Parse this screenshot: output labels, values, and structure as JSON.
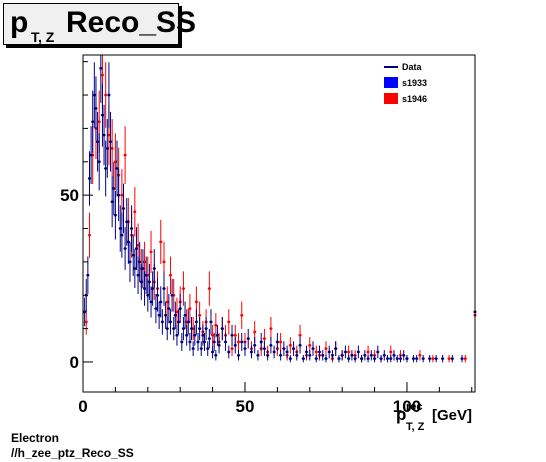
{
  "title": {
    "main": "p",
    "sub": "T, Z",
    "rest": "Reco_SS"
  },
  "footer": {
    "line1": "Electron",
    "line2": "//h_zee_ptz_Reco_SS"
  },
  "colors": {
    "data": "#000080",
    "s1933": "#0000ff",
    "s1946": "#ff0000",
    "frame": "#000000"
  },
  "chart_data": {
    "type": "scatter",
    "x_axis": {
      "label_main": "p",
      "label_sup": "rec",
      "label_sub": "T, Z",
      "label_unit": "[GeV]",
      "range": [
        0,
        121
      ],
      "ticks": [
        0,
        50,
        100
      ]
    },
    "y_axis": {
      "range": [
        -9,
        92
      ],
      "ticks": [
        0,
        50
      ]
    },
    "legend": {
      "placement": "top-right",
      "entries": [
        {
          "name": "Data",
          "style": "line",
          "color": "#000080"
        },
        {
          "name": "s1933",
          "style": "fill",
          "color": "#0000ff"
        },
        {
          "name": "s1946",
          "style": "fill",
          "color": "#ff0000"
        }
      ]
    },
    "series": [
      {
        "name": "s1946",
        "color": "#ff0000",
        "points": [
          [
            1,
            12
          ],
          [
            2,
            38
          ],
          [
            3,
            62
          ],
          [
            4,
            70
          ],
          [
            5,
            72
          ],
          [
            6,
            86
          ],
          [
            7,
            80
          ],
          [
            8,
            68
          ],
          [
            9,
            64
          ],
          [
            10,
            60
          ],
          [
            11,
            56
          ],
          [
            12,
            50
          ],
          [
            13,
            62
          ],
          [
            14,
            42
          ],
          [
            15,
            38
          ],
          [
            16,
            45
          ],
          [
            17,
            35
          ],
          [
            18,
            28
          ],
          [
            19,
            30
          ],
          [
            20,
            26
          ],
          [
            21,
            33
          ],
          [
            22,
            24
          ],
          [
            23,
            22
          ],
          [
            24,
            36
          ],
          [
            25,
            30
          ],
          [
            26,
            18
          ],
          [
            27,
            26
          ],
          [
            28,
            20
          ],
          [
            29,
            15
          ],
          [
            30,
            18
          ],
          [
            31,
            22
          ],
          [
            32,
            12
          ],
          [
            33,
            16
          ],
          [
            34,
            10
          ],
          [
            35,
            18
          ],
          [
            36,
            14
          ],
          [
            37,
            9
          ],
          [
            38,
            12
          ],
          [
            39,
            22
          ],
          [
            40,
            8
          ],
          [
            41,
            11
          ],
          [
            42,
            6
          ],
          [
            43,
            10
          ],
          [
            44,
            8
          ],
          [
            45,
            12
          ],
          [
            46,
            4
          ],
          [
            47,
            8
          ],
          [
            48,
            6
          ],
          [
            49,
            14
          ],
          [
            50,
            6
          ],
          [
            52,
            4
          ],
          [
            53,
            9
          ],
          [
            55,
            4
          ],
          [
            56,
            7
          ],
          [
            57,
            3
          ],
          [
            58,
            10
          ],
          [
            60,
            4
          ],
          [
            61,
            6
          ],
          [
            63,
            2
          ],
          [
            64,
            5
          ],
          [
            66,
            3
          ],
          [
            67,
            8
          ],
          [
            69,
            2
          ],
          [
            70,
            5
          ],
          [
            72,
            3
          ],
          [
            73,
            2
          ],
          [
            75,
            4
          ],
          [
            77,
            1
          ],
          [
            78,
            4
          ],
          [
            80,
            2
          ],
          [
            82,
            3
          ],
          [
            84,
            2
          ],
          [
            86,
            1
          ],
          [
            88,
            3
          ],
          [
            90,
            2
          ],
          [
            92,
            1
          ],
          [
            95,
            3
          ],
          [
            98,
            2
          ],
          [
            100,
            1
          ],
          [
            104,
            2
          ],
          [
            108,
            1
          ],
          [
            113,
            1
          ],
          [
            118,
            1
          ],
          [
            121,
            14
          ]
        ]
      },
      {
        "name": "Data",
        "color": "#000080",
        "points": [
          [
            0.5,
            15
          ],
          [
            1,
            20
          ],
          [
            1.5,
            26
          ],
          [
            2,
            55
          ],
          [
            2.5,
            62
          ],
          [
            3,
            72
          ],
          [
            3.5,
            80
          ],
          [
            4,
            76
          ],
          [
            4.5,
            66
          ],
          [
            5,
            60
          ],
          [
            5.5,
            88
          ],
          [
            6,
            74
          ],
          [
            6.5,
            68
          ],
          [
            7,
            58
          ],
          [
            7.5,
            64
          ],
          [
            8,
            80
          ],
          [
            8.5,
            66
          ],
          [
            9,
            48
          ],
          [
            9.5,
            52
          ],
          [
            10,
            44
          ],
          [
            10.5,
            58
          ],
          [
            11,
            50
          ],
          [
            11.5,
            40
          ],
          [
            12,
            38
          ],
          [
            12.5,
            46
          ],
          [
            13,
            34
          ],
          [
            13.5,
            42
          ],
          [
            14,
            36
          ],
          [
            14.5,
            30
          ],
          [
            15,
            40
          ],
          [
            15.5,
            32
          ],
          [
            16,
            28
          ],
          [
            16.5,
            34
          ],
          [
            17,
            26
          ],
          [
            17.5,
            30
          ],
          [
            18,
            24
          ],
          [
            18.5,
            28
          ],
          [
            19,
            22
          ],
          [
            19.5,
            26
          ],
          [
            20,
            20
          ],
          [
            20.5,
            24
          ],
          [
            21,
            18
          ],
          [
            21.5,
            22
          ],
          [
            22,
            28
          ],
          [
            22.5,
            16
          ],
          [
            23,
            20
          ],
          [
            23.5,
            14
          ],
          [
            24,
            18
          ],
          [
            24.5,
            12
          ],
          [
            25,
            22
          ],
          [
            25.5,
            14
          ],
          [
            26,
            10
          ],
          [
            26.5,
            16
          ],
          [
            27,
            12
          ],
          [
            27.5,
            20
          ],
          [
            28,
            10
          ],
          [
            28.5,
            14
          ],
          [
            29,
            8
          ],
          [
            29.5,
            12
          ],
          [
            30,
            16
          ],
          [
            30.5,
            6
          ],
          [
            31,
            10
          ],
          [
            31.5,
            14
          ],
          [
            32,
            8
          ],
          [
            32.5,
            12
          ],
          [
            33,
            6
          ],
          [
            33.5,
            10
          ],
          [
            34,
            4
          ],
          [
            34.5,
            8
          ],
          [
            35,
            12
          ],
          [
            35.5,
            6
          ],
          [
            36,
            10
          ],
          [
            36.5,
            4
          ],
          [
            37,
            8
          ],
          [
            37.5,
            6
          ],
          [
            38,
            10
          ],
          [
            38.5,
            4
          ],
          [
            39,
            7
          ],
          [
            39.5,
            12
          ],
          [
            40,
            3
          ],
          [
            40.5,
            6
          ],
          [
            41,
            2
          ],
          [
            41.5,
            8
          ],
          [
            42,
            5
          ],
          [
            43,
            10
          ],
          [
            44,
            6
          ],
          [
            45,
            3
          ],
          [
            46,
            8
          ],
          [
            47,
            5
          ],
          [
            48,
            2
          ],
          [
            49,
            6
          ],
          [
            50,
            4
          ],
          [
            51,
            7
          ],
          [
            52,
            3
          ],
          [
            53,
            5
          ],
          [
            54,
            2
          ],
          [
            55,
            6
          ],
          [
            56,
            4
          ],
          [
            57,
            2
          ],
          [
            58,
            5
          ],
          [
            59,
            3
          ],
          [
            60,
            6
          ],
          [
            61,
            2
          ],
          [
            62,
            4
          ],
          [
            63,
            3
          ],
          [
            64,
            1
          ],
          [
            65,
            4
          ],
          [
            66,
            2
          ],
          [
            67,
            5
          ],
          [
            68,
            1
          ],
          [
            69,
            3
          ],
          [
            70,
            2
          ],
          [
            71,
            4
          ],
          [
            72,
            1
          ],
          [
            73,
            3
          ],
          [
            74,
            2
          ],
          [
            75,
            1
          ],
          [
            76,
            3
          ],
          [
            77,
            2
          ],
          [
            78,
            4
          ],
          [
            79,
            1
          ],
          [
            80,
            2
          ],
          [
            81,
            3
          ],
          [
            82,
            1
          ],
          [
            83,
            2
          ],
          [
            84,
            1
          ],
          [
            85,
            3
          ],
          [
            86,
            1
          ],
          [
            87,
            2
          ],
          [
            88,
            1
          ],
          [
            89,
            2
          ],
          [
            90,
            1
          ],
          [
            91,
            3
          ],
          [
            92,
            1
          ],
          [
            93,
            2
          ],
          [
            94,
            1
          ],
          [
            95,
            1
          ],
          [
            96,
            2
          ],
          [
            97,
            1
          ],
          [
            98,
            1
          ],
          [
            99,
            2
          ],
          [
            100,
            1
          ],
          [
            102,
            1
          ],
          [
            103,
            1
          ],
          [
            105,
            1
          ],
          [
            107,
            1
          ],
          [
            109,
            1
          ],
          [
            111,
            1
          ],
          [
            114,
            1
          ],
          [
            117,
            1
          ],
          [
            121,
            15
          ]
        ]
      }
    ]
  }
}
